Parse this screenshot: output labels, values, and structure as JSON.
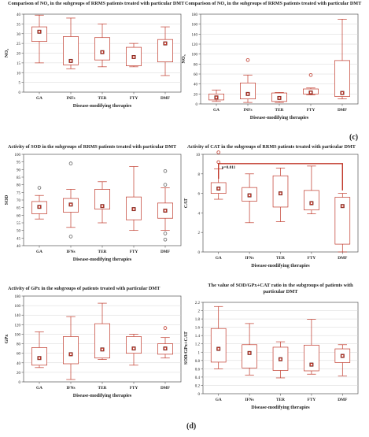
{
  "panel_labels": [
    "(c)",
    "(d)"
  ],
  "chart_data": [
    {
      "type": "box",
      "title": "Comparison of NO₂ in the subgroups of RRMS patients treated with particular DMT",
      "xlabel": "Disease-modifying therapies",
      "ylabel": "NO₂",
      "categories": [
        "GA",
        "INFs",
        "TER",
        "FTY",
        "DMF"
      ],
      "ylim": [
        0,
        40
      ],
      "yticks": [
        0,
        5,
        10,
        15,
        20,
        25,
        30,
        35,
        40
      ],
      "grid": true,
      "boxes": [
        {
          "whisker_low": 15,
          "q1": 26,
          "median": 31,
          "q3": 33.5,
          "whisker_high": 39.5,
          "outliers": []
        },
        {
          "whisker_low": 12,
          "q1": 14,
          "median": 16,
          "q3": 28.5,
          "whisker_high": 38,
          "outliers": []
        },
        {
          "whisker_low": 13,
          "q1": 16.5,
          "median": 20.5,
          "q3": 28,
          "whisker_high": 35,
          "outliers": []
        },
        {
          "whisker_low": 13,
          "q1": 13.5,
          "median": 18,
          "q3": 23,
          "whisker_high": 25,
          "outliers": []
        },
        {
          "whisker_low": 8.5,
          "q1": 15.5,
          "median": 25,
          "q3": 27,
          "whisker_high": 33.5,
          "outliers": []
        }
      ]
    },
    {
      "type": "box",
      "title": "Comparison of NO₃ in the subgroups of RRMS patients treated with particular DMT",
      "xlabel": "Disease-modifying therapies",
      "ylabel": "NO₃",
      "categories": [
        "GA",
        "INFs",
        "TER",
        "FTY",
        "DMF"
      ],
      "ylim": [
        0,
        180
      ],
      "yticks": [
        0,
        20,
        40,
        60,
        80,
        100,
        120,
        140,
        160,
        180
      ],
      "grid": true,
      "boxes": [
        {
          "whisker_low": 5,
          "q1": 8,
          "median": 13,
          "q3": 20,
          "whisker_high": 28,
          "outliers": []
        },
        {
          "whisker_low": 3,
          "q1": 10,
          "median": 20,
          "q3": 42,
          "whisker_high": 58,
          "outliers": [
            88
          ]
        },
        {
          "whisker_low": 3,
          "q1": 5,
          "median": 12,
          "q3": 22,
          "whisker_high": 23,
          "outliers": []
        },
        {
          "whisker_low": 18,
          "q1": 20,
          "median": 23,
          "q3": 30,
          "whisker_high": 32,
          "outliers": [
            58
          ]
        },
        {
          "whisker_low": 10,
          "q1": 15,
          "median": 22,
          "q3": 87,
          "whisker_high": 170,
          "outliers": []
        }
      ]
    },
    {
      "type": "box",
      "title": "Activity of SOD in the subgroups of RRMS patients treated with particular DMT",
      "xlabel": "Disease-modifying therapies",
      "ylabel": "SOD",
      "categories": [
        "GA",
        "IFNs",
        "TER",
        "FTY",
        "DMF"
      ],
      "ylim": [
        40,
        100
      ],
      "yticks": [
        40,
        45,
        50,
        55,
        60,
        65,
        70,
        75,
        80,
        85,
        90,
        95,
        100
      ],
      "grid": false,
      "boxes": [
        {
          "whisker_low": 57.5,
          "q1": 61,
          "median": 65.5,
          "q3": 69,
          "whisker_high": 73,
          "outliers": [
            78
          ]
        },
        {
          "whisker_low": 52,
          "q1": 62,
          "median": 67,
          "q3": 71,
          "whisker_high": 77,
          "outliers": [
            94,
            46
          ]
        },
        {
          "whisker_low": 55,
          "q1": 64,
          "median": 66,
          "q3": 77,
          "whisker_high": 82,
          "outliers": []
        },
        {
          "whisker_low": 50,
          "q1": 57,
          "median": 64,
          "q3": 72,
          "whisker_high": 92,
          "outliers": []
        },
        {
          "whisker_low": 50,
          "q1": 58,
          "median": 63,
          "q3": 68,
          "whisker_high": 78,
          "outliers": [
            89,
            80,
            48,
            44
          ]
        }
      ]
    },
    {
      "type": "box",
      "title": "Activity of CAT in the subgroups of RRMS patients treated with particular DMT",
      "xlabel": "Disease-modifying therapies",
      "ylabel": "CAT",
      "categories": [
        "GA",
        "IFNs",
        "TER",
        "FTY",
        "DMF"
      ],
      "ylim": [
        0,
        10
      ],
      "yticks": [
        0,
        2,
        4,
        6,
        8,
        10
      ],
      "grid": false,
      "boxes": [
        {
          "whisker_low": 5.4,
          "q1": 6.0,
          "median": 6.5,
          "q3": 7.1,
          "whisker_high": 8.5,
          "outliers": [
            10.2,
            9.2
          ]
        },
        {
          "whisker_low": 3.0,
          "q1": 5.2,
          "median": 5.8,
          "q3": 6.6,
          "whisker_high": 8.0,
          "outliers": []
        },
        {
          "whisker_low": 3.1,
          "q1": 4.6,
          "median": 6.0,
          "q3": 7.8,
          "whisker_high": 8.6,
          "outliers": []
        },
        {
          "whisker_low": 3.9,
          "q1": 4.3,
          "median": 5.0,
          "q3": 6.3,
          "whisker_high": 8.8,
          "outliers": []
        },
        {
          "whisker_low": 0.0,
          "q1": 0.8,
          "median": 4.7,
          "q3": 5.6,
          "whisker_high": 6.0,
          "outliers": []
        }
      ],
      "annotations": [
        {
          "text": "p=0.011",
          "from": "GA",
          "to": "DMF"
        }
      ]
    },
    {
      "type": "box",
      "title": "Activity of GPx in the subgroups of patients treated with particular DMT",
      "xlabel": "Disease-modifying therapies",
      "ylabel": "GPx",
      "categories": [
        "GA",
        "IFNs",
        "TER",
        "FTY",
        "DMF"
      ],
      "ylim": [
        0,
        180
      ],
      "yticks": [
        0,
        20,
        40,
        60,
        80,
        100,
        120,
        140,
        160,
        180
      ],
      "grid": true,
      "boxes": [
        {
          "whisker_low": 30,
          "q1": 35,
          "median": 50,
          "q3": 72,
          "whisker_high": 105,
          "outliers": []
        },
        {
          "whisker_low": 5,
          "q1": 38,
          "median": 58,
          "q3": 95,
          "whisker_high": 137,
          "outliers": []
        },
        {
          "whisker_low": 47,
          "q1": 50,
          "median": 68,
          "q3": 122,
          "whisker_high": 165,
          "outliers": []
        },
        {
          "whisker_low": 35,
          "q1": 60,
          "median": 70,
          "q3": 95,
          "whisker_high": 100,
          "outliers": []
        },
        {
          "whisker_low": 50,
          "q1": 58,
          "median": 70,
          "q3": 80,
          "whisker_high": 93,
          "outliers": [
            113
          ]
        }
      ]
    },
    {
      "type": "box",
      "title": "The value of SOD/GPx+CAT ratio in the subgroups of patients with particular DMT",
      "xlabel": "Disease-modifying therapies",
      "ylabel": "SOD/GPx+CAT",
      "categories": [
        "GA",
        "IFNs",
        "TER",
        "FTY",
        "DMF"
      ],
      "ylim": [
        0,
        2.2
      ],
      "yticks": [
        0,
        0.2,
        0.4,
        0.6,
        0.8,
        1.0,
        1.2,
        1.4,
        1.6,
        1.8,
        2.0,
        2.2
      ],
      "grid": true,
      "boxes": [
        {
          "whisker_low": 0.6,
          "q1": 0.76,
          "median": 1.08,
          "q3": 1.57,
          "whisker_high": 2.1,
          "outliers": []
        },
        {
          "whisker_low": 0.45,
          "q1": 0.62,
          "median": 0.98,
          "q3": 1.18,
          "whisker_high": 1.69,
          "outliers": []
        },
        {
          "whisker_low": 0.38,
          "q1": 0.56,
          "median": 0.83,
          "q3": 1.12,
          "whisker_high": 1.25,
          "outliers": []
        },
        {
          "whisker_low": 0.47,
          "q1": 0.55,
          "median": 0.7,
          "q3": 1.17,
          "whisker_high": 1.79,
          "outliers": []
        },
        {
          "whisker_low": 0.43,
          "q1": 0.75,
          "median": 0.91,
          "q3": 1.08,
          "whisker_high": 1.18,
          "outliers": []
        }
      ]
    }
  ]
}
